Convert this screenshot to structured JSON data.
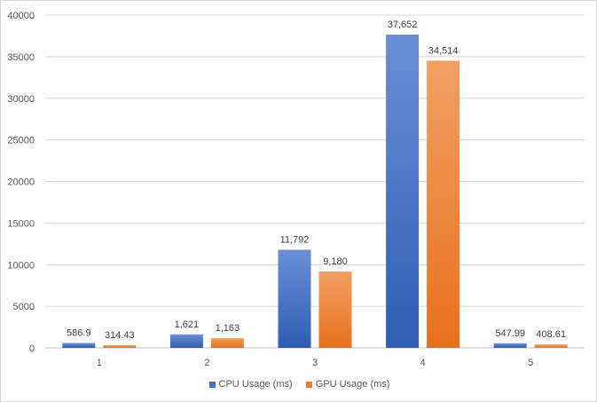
{
  "chart_data": {
    "type": "bar",
    "title": "",
    "xlabel": "",
    "ylabel": "",
    "categories": [
      "1",
      "2",
      "3",
      "4",
      "5"
    ],
    "ylim": [
      0,
      40000
    ],
    "yticks": [
      0,
      5000,
      10000,
      15000,
      20000,
      25000,
      30000,
      35000,
      40000
    ],
    "ytick_labels": [
      "0",
      "5000",
      "10000",
      "15000",
      "20000",
      "25000",
      "30000",
      "35000",
      "40000"
    ],
    "grid": true,
    "legend_position": "bottom",
    "series": [
      {
        "name": "CPU Usage (ms)",
        "color": "#4472c4",
        "values": [
          586.9,
          1621,
          11792,
          37652,
          547.99
        ],
        "labels": [
          "586.9",
          "1,621",
          "11,792",
          "37,652",
          "547.99"
        ]
      },
      {
        "name": "GPU Usage (ms)",
        "color": "#ed7d31",
        "values": [
          314.43,
          1163,
          9180,
          34514,
          408.61
        ],
        "labels": [
          "314.43",
          "1,163",
          "9,180",
          "34,514",
          "408.61"
        ]
      }
    ]
  }
}
